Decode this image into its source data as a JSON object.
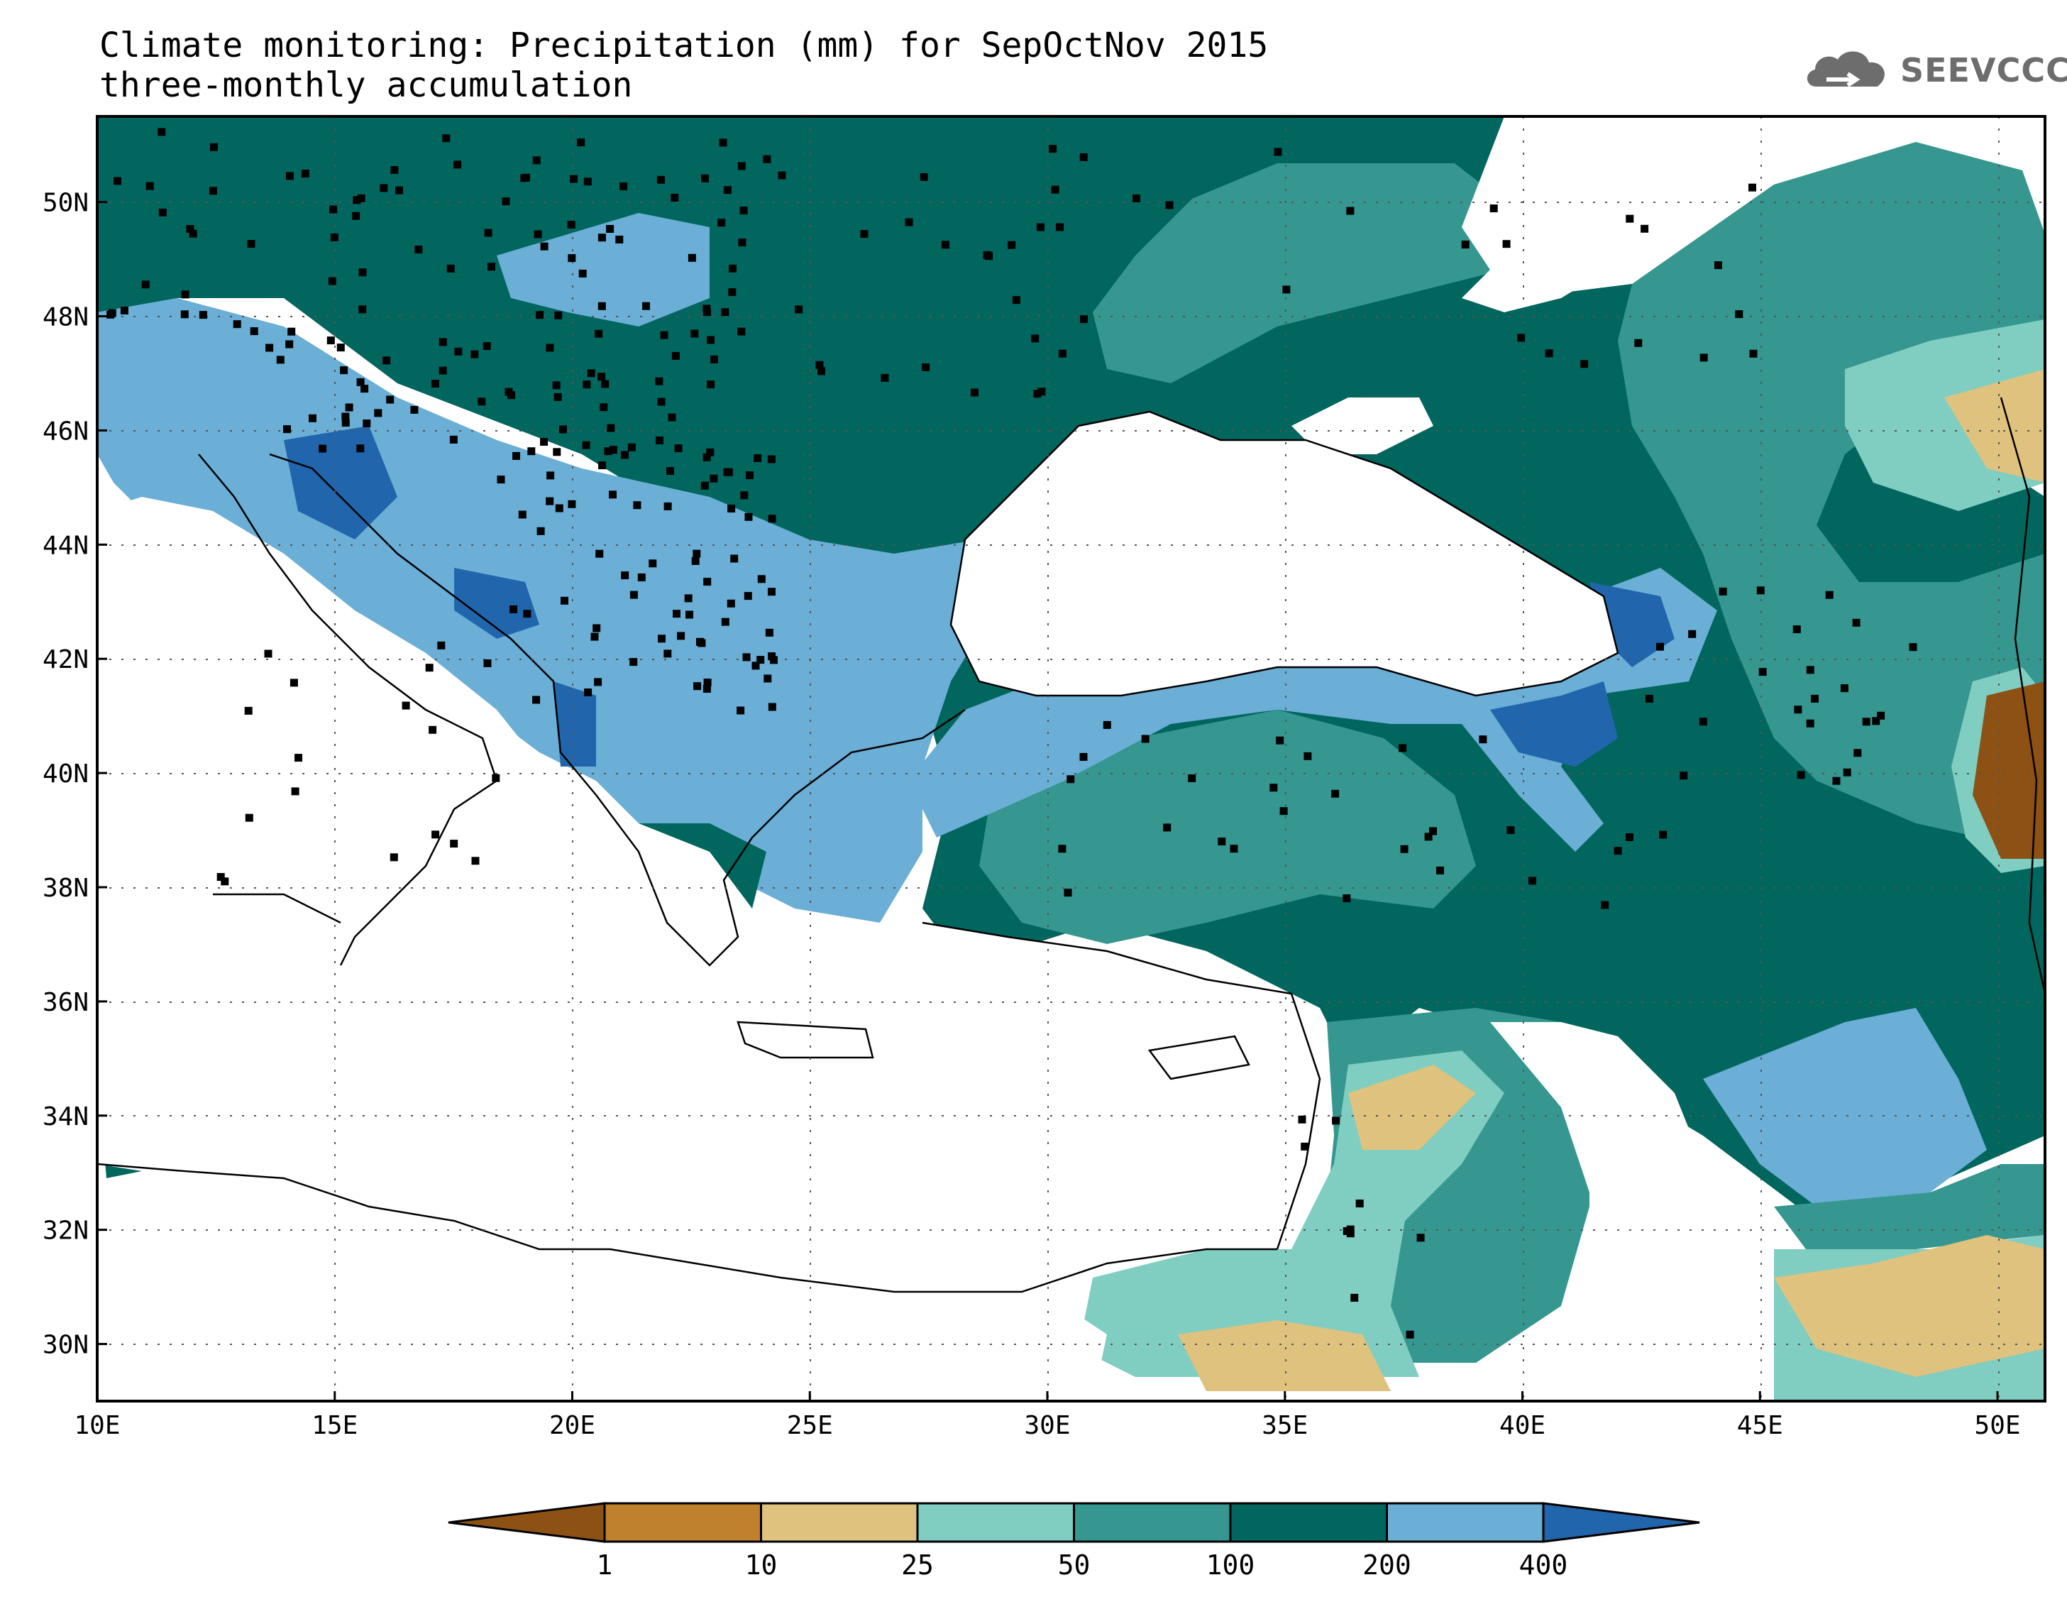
{
  "title": {
    "line1": "Climate monitoring: Precipitation (mm) for SepOctNov 2015",
    "line2": "three-monthly accumulation"
  },
  "logo": {
    "text": "SEEVCCC",
    "icon": "cloud-logo-icon"
  },
  "map": {
    "lon_ticks": [
      "10E",
      "15E",
      "20E",
      "25E",
      "30E",
      "35E",
      "40E",
      "45E",
      "50E"
    ],
    "lat_ticks": [
      "50N",
      "48N",
      "46N",
      "44N",
      "42N",
      "40N",
      "38N",
      "36N",
      "34N",
      "32N",
      "30N"
    ],
    "lon_range": [
      10,
      51
    ],
    "lat_range": [
      29,
      51.5
    ],
    "grid": "dotted"
  },
  "colorbar": {
    "labels": [
      "1",
      "10",
      "25",
      "50",
      "100",
      "200",
      "400"
    ],
    "colors": [
      "#8c5113",
      "#bf812d",
      "#dfc27d",
      "#80cdc1",
      "#35978f",
      "#01665e",
      "#6baed6",
      "#2166ac"
    ],
    "extend": "both"
  },
  "colors": {
    "ocean": "#ffffff",
    "coast": "#000000",
    "station": "#000000"
  }
}
